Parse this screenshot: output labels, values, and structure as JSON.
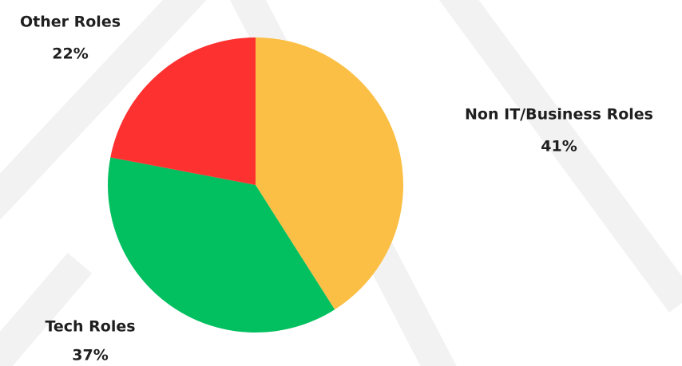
{
  "chart_data": {
    "type": "pie",
    "categories": [
      "Non IT/Business Roles",
      "Tech Roles",
      "Other Roles"
    ],
    "values": [
      41,
      37,
      22
    ],
    "value_labels": [
      "41%",
      "37%",
      "22%"
    ],
    "colors": [
      "#fbbf45",
      "#02bf5f",
      "#fe3131"
    ]
  }
}
